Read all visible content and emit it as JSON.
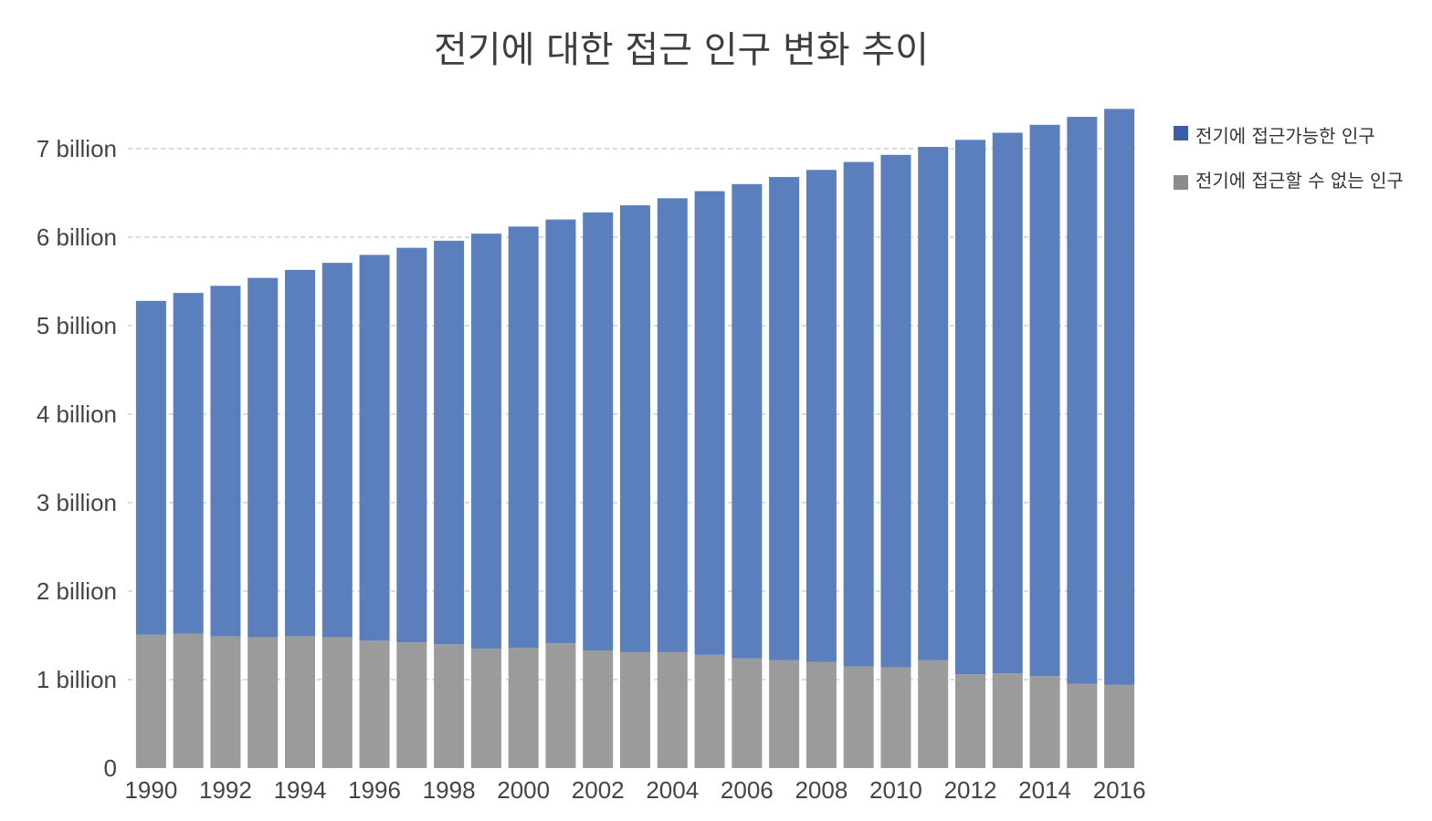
{
  "chart_data": {
    "type": "bar",
    "stacked": true,
    "title": "전기에 대한 접근 인구 변화 추이",
    "xlabel": "",
    "ylabel": "",
    "ylim": [
      0,
      7500000000
    ],
    "y_ticks": [
      {
        "value": 0,
        "label": "0"
      },
      {
        "value": 1000000000,
        "label": "1 billion"
      },
      {
        "value": 2000000000,
        "label": "2 billion"
      },
      {
        "value": 3000000000,
        "label": "3 billion"
      },
      {
        "value": 4000000000,
        "label": "4 billion"
      },
      {
        "value": 5000000000,
        "label": "5 billion"
      },
      {
        "value": 6000000000,
        "label": "6 billion"
      },
      {
        "value": 7000000000,
        "label": "7 billion"
      }
    ],
    "grid": true,
    "legend_position": "top-right",
    "categories": [
      "1990",
      "1991",
      "1992",
      "1993",
      "1994",
      "1995",
      "1996",
      "1997",
      "1998",
      "1999",
      "2000",
      "2001",
      "2002",
      "2003",
      "2004",
      "2005",
      "2006",
      "2007",
      "2008",
      "2009",
      "2010",
      "2011",
      "2012",
      "2013",
      "2014",
      "2015",
      "2016"
    ],
    "x_tick_labels": [
      "1990",
      "1992",
      "1994",
      "1996",
      "1998",
      "2000",
      "2002",
      "2004",
      "2006",
      "2008",
      "2010",
      "2012",
      "2014",
      "2016"
    ],
    "series": [
      {
        "name": "전기에 접근할 수 없는 인구",
        "color": "#9b9b9b",
        "values": [
          1510000000,
          1520000000,
          1490000000,
          1480000000,
          1490000000,
          1480000000,
          1440000000,
          1420000000,
          1400000000,
          1350000000,
          1360000000,
          1410000000,
          1330000000,
          1310000000,
          1310000000,
          1280000000,
          1240000000,
          1220000000,
          1200000000,
          1150000000,
          1140000000,
          1220000000,
          1060000000,
          1070000000,
          1040000000,
          950000000,
          940000000
        ]
      },
      {
        "name": "전기에 접근가능한 인구",
        "color": "#5b7fbd",
        "values": [
          3770000000,
          3850000000,
          3960000000,
          4060000000,
          4140000000,
          4230000000,
          4360000000,
          4460000000,
          4560000000,
          4690000000,
          4760000000,
          4790000000,
          4950000000,
          5050000000,
          5130000000,
          5240000000,
          5360000000,
          5460000000,
          5560000000,
          5700000000,
          5790000000,
          5800000000,
          6040000000,
          6110000000,
          6230000000,
          6410000000,
          6510000000
        ]
      }
    ]
  },
  "legend": {
    "items": [
      {
        "label": "전기에 접근가능한 인구",
        "color": "#3a5ea8"
      },
      {
        "label": "전기에 접근할 수 없는 인구",
        "color": "#8c8c8c"
      }
    ]
  }
}
